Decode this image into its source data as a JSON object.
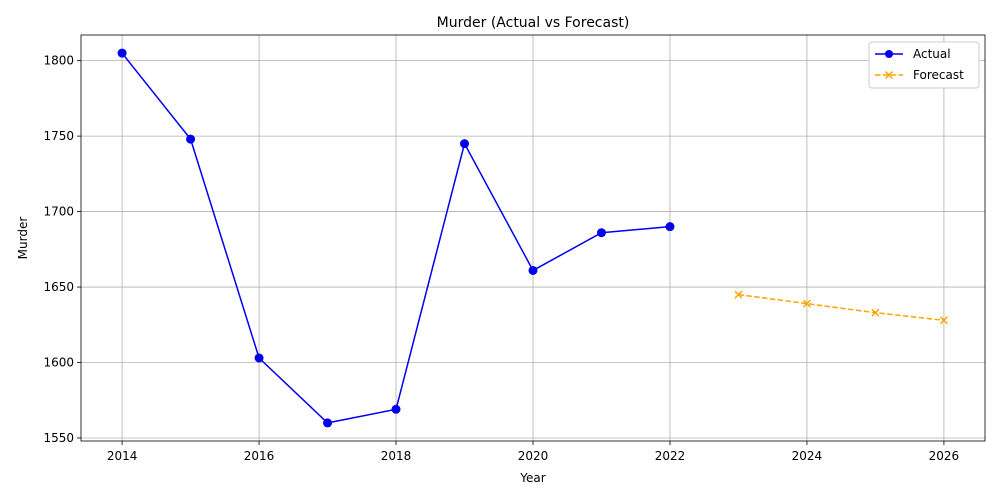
{
  "chart_data": {
    "type": "line",
    "title": "Murder (Actual vs Forecast)",
    "xlabel": "Year",
    "ylabel": "Murder",
    "xlim": [
      2013.4,
      2026.6
    ],
    "ylim": [
      1548,
      1817
    ],
    "x_ticks": [
      2014,
      2016,
      2018,
      2020,
      2022,
      2024,
      2026
    ],
    "y_ticks": [
      1550,
      1600,
      1650,
      1700,
      1750,
      1800
    ],
    "grid": true,
    "legend_position": "top-right",
    "series": [
      {
        "name": "Actual",
        "color": "#0000ee",
        "line_style": "solid",
        "marker": "circle",
        "x": [
          2014,
          2015,
          2016,
          2017,
          2018,
          2019,
          2020,
          2021,
          2022
        ],
        "y": [
          1805,
          1748,
          1603,
          1560,
          1569,
          1745,
          1661,
          1686,
          1690
        ]
      },
      {
        "name": "Forecast",
        "color": "#ffa500",
        "line_style": "dashed",
        "marker": "x",
        "x": [
          2023,
          2024,
          2025,
          2026
        ],
        "y": [
          1645,
          1639,
          1633,
          1628
        ]
      }
    ]
  }
}
